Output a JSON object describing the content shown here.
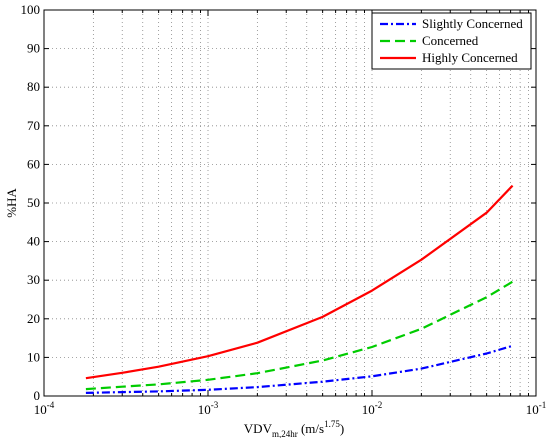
{
  "chart_data": {
    "type": "line",
    "xscale": "log",
    "xlim": [
      0.0001,
      0.1
    ],
    "ylim": [
      0,
      100
    ],
    "grid": true,
    "xlabel_parts": {
      "base": "VDV",
      "sub": "m,24hr",
      "unit_prefix": " (m/s",
      "sup": "1.75",
      "unit_suffix": ")"
    },
    "ylabel": "%HA",
    "yticks": [
      0,
      10,
      20,
      30,
      40,
      50,
      60,
      70,
      80,
      90,
      100
    ],
    "xticks": [
      {
        "value": 0.0001,
        "base": "10",
        "exp": "-4"
      },
      {
        "value": 0.001,
        "base": "10",
        "exp": "-3"
      },
      {
        "value": 0.01,
        "base": "10",
        "exp": "-2"
      },
      {
        "value": 0.1,
        "base": "10",
        "exp": "-1"
      }
    ],
    "legend_position": "top-right",
    "series": [
      {
        "name": "Slightly Concerned",
        "color": "#0000ff",
        "dash": "8,3,2,3",
        "x": [
          0.00018,
          0.0003,
          0.0005,
          0.001,
          0.002,
          0.005,
          0.01,
          0.02,
          0.05,
          0.072
        ],
        "y": [
          0.8,
          1.0,
          1.2,
          1.6,
          2.3,
          3.7,
          5.1,
          7.1,
          11.0,
          13.0
        ]
      },
      {
        "name": "Concerned",
        "color": "#00cc00",
        "dash": "10,5",
        "x": [
          0.00018,
          0.0003,
          0.0005,
          0.001,
          0.002,
          0.005,
          0.01,
          0.02,
          0.05,
          0.072
        ],
        "y": [
          1.8,
          2.4,
          3.0,
          4.2,
          5.9,
          9.2,
          12.7,
          17.4,
          25.6,
          29.6
        ]
      },
      {
        "name": "Highly Concerned",
        "color": "#ff0000",
        "dash": "",
        "x": [
          0.00018,
          0.0003,
          0.0005,
          0.001,
          0.002,
          0.005,
          0.01,
          0.02,
          0.05,
          0.072
        ],
        "y": [
          4.6,
          6.0,
          7.6,
          10.3,
          13.8,
          20.5,
          27.3,
          35.3,
          47.5,
          54.5
        ]
      }
    ]
  }
}
